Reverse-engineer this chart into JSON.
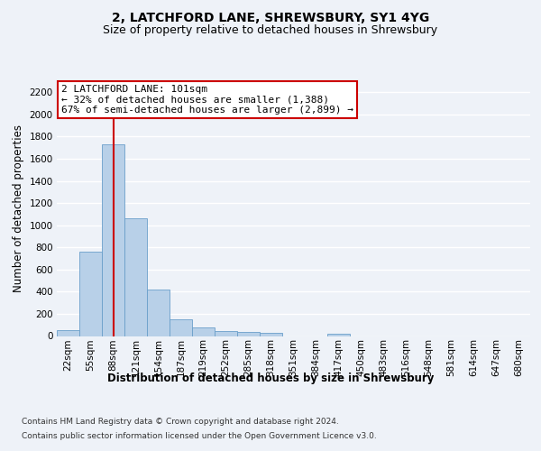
{
  "title": "2, LATCHFORD LANE, SHREWSBURY, SY1 4YG",
  "subtitle": "Size of property relative to detached houses in Shrewsbury",
  "xlabel": "Distribution of detached houses by size in Shrewsbury",
  "ylabel": "Number of detached properties",
  "bar_color": "#b8d0e8",
  "bar_edge_color": "#6a9fca",
  "bin_labels": [
    "22sqm",
    "55sqm",
    "88sqm",
    "121sqm",
    "154sqm",
    "187sqm",
    "219sqm",
    "252sqm",
    "285sqm",
    "318sqm",
    "351sqm",
    "384sqm",
    "417sqm",
    "450sqm",
    "483sqm",
    "516sqm",
    "548sqm",
    "581sqm",
    "614sqm",
    "647sqm",
    "680sqm"
  ],
  "bar_heights": [
    55,
    760,
    1730,
    1060,
    420,
    150,
    80,
    48,
    40,
    30,
    0,
    0,
    20,
    0,
    0,
    0,
    0,
    0,
    0,
    0,
    0
  ],
  "ylim": [
    0,
    2300
  ],
  "yticks": [
    0,
    200,
    400,
    600,
    800,
    1000,
    1200,
    1400,
    1600,
    1800,
    2000,
    2200
  ],
  "property_line_x": 2.0,
  "annotation_text": "2 LATCHFORD LANE: 101sqm\n← 32% of detached houses are smaller (1,388)\n67% of semi-detached houses are larger (2,899) →",
  "annotation_box_color": "#ffffff",
  "annotation_box_edge_color": "#cc0000",
  "red_line_color": "#cc0000",
  "footer_line1": "Contains HM Land Registry data © Crown copyright and database right 2024.",
  "footer_line2": "Contains public sector information licensed under the Open Government Licence v3.0.",
  "background_color": "#eef2f8",
  "plot_background_color": "#eef2f8",
  "grid_color": "#ffffff",
  "title_fontsize": 10,
  "subtitle_fontsize": 9,
  "axis_label_fontsize": 8.5,
  "tick_fontsize": 7.5,
  "annotation_fontsize": 8,
  "footer_fontsize": 6.5
}
